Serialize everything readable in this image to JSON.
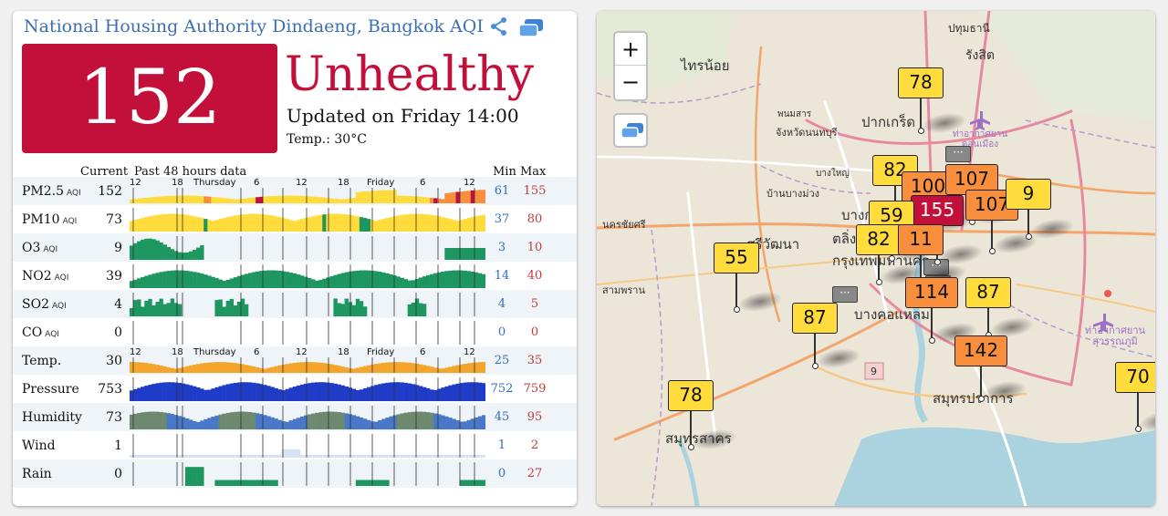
{
  "station": {
    "title": "National Housing Authority Dindaeng, Bangkok AQI",
    "aqi": "152",
    "status": "Unhealthy",
    "updated": "Updated on Friday 14:00",
    "temperature": "Temp.: 30°C",
    "colors": {
      "unhealthy": "#c3103b",
      "title": "#3a6fb5",
      "min": "#2f6fc1",
      "max": "#c23a3a"
    }
  },
  "table": {
    "header_current": "Current",
    "header_past": "Past 48 hours data",
    "header_min": "Min",
    "header_max": "Max",
    "ticks_top": [
      "12",
      "18",
      "Thursday",
      "6",
      "12",
      "18",
      "Friday",
      "6",
      "12"
    ],
    "rows": [
      {
        "name": "PM2.5",
        "unit": "AQI",
        "current": "152",
        "min": "61",
        "max": "155",
        "kind": "pm25"
      },
      {
        "name": "PM10",
        "unit": "AQI",
        "current": "73",
        "min": "37",
        "max": "80",
        "kind": "pm10"
      },
      {
        "name": "O3",
        "unit": "AQI",
        "current": "9",
        "min": "3",
        "max": "10",
        "kind": "o3"
      },
      {
        "name": "NO2",
        "unit": "AQI",
        "current": "39",
        "min": "14",
        "max": "40",
        "kind": "no2"
      },
      {
        "name": "SO2",
        "unit": "AQI",
        "current": "4",
        "min": "4",
        "max": "5",
        "kind": "so2"
      },
      {
        "name": "CO",
        "unit": "AQI",
        "current": "0",
        "min": "0",
        "max": "0",
        "kind": "co"
      },
      {
        "name": "Temp.",
        "unit": "",
        "current": "30",
        "min": "25",
        "max": "35",
        "kind": "temp"
      },
      {
        "name": "Pressure",
        "unit": "",
        "current": "753",
        "min": "752",
        "max": "759",
        "kind": "pressure"
      },
      {
        "name": "Humidity",
        "unit": "",
        "current": "73",
        "min": "45",
        "max": "95",
        "kind": "humidity"
      },
      {
        "name": "Wind",
        "unit": "",
        "current": "1",
        "min": "1",
        "max": "2",
        "kind": "wind"
      },
      {
        "name": "Rain",
        "unit": "",
        "current": "0",
        "min": "0",
        "max": "27",
        "kind": "rain"
      }
    ]
  },
  "map": {
    "zoom_in": "+",
    "zoom_out": "−",
    "places": [
      {
        "name": "ปทุมธานี",
        "size": 12
      },
      {
        "name": "ไทรน้อย",
        "size": 15
      },
      {
        "name": "รังสิต",
        "size": 14
      },
      {
        "name": "ปากเกร็ด",
        "size": 15
      },
      {
        "name": "พนมสาร",
        "size": 10
      },
      {
        "name": "จังหวัดนนทบุรี",
        "size": 11
      },
      {
        "name": "ท่าอากาศยาน ดอนเมือง",
        "size": 10
      },
      {
        "name": "บางใหญ่",
        "size": 10
      },
      {
        "name": "บ้านบางม่วง",
        "size": 11
      },
      {
        "name": "นครชัยศรี",
        "size": 11
      },
      {
        "name": "ศรีวัฒนา",
        "size": 15
      },
      {
        "name": "บางกรวย",
        "size": 15
      },
      {
        "name": "ตลิ่งชัน",
        "size": 15
      },
      {
        "name": "กรุงเทพมหานคร",
        "size": 15
      },
      {
        "name": "สามพราน",
        "size": 11
      },
      {
        "name": "บางคอแหลม",
        "size": 15
      },
      {
        "name": "ท่าอากาศยาน สุวรรณภูมิ",
        "size": 11
      },
      {
        "name": "สมุทรปราการ",
        "size": 15
      },
      {
        "name": "สมุทรสาคร",
        "size": 15
      },
      {
        "name": "9",
        "size": 11
      }
    ],
    "markers": [
      {
        "value": "78",
        "color": "#ffdc3c"
      },
      {
        "value": "82",
        "color": "#ffdc3c"
      },
      {
        "value": "100",
        "color": "#f98f3c"
      },
      {
        "value": "107",
        "color": "#f98f3c"
      },
      {
        "value": "107",
        "color": "#f98f3c"
      },
      {
        "value": "9",
        "color": "#ffdc3c"
      },
      {
        "value": "155",
        "color": "#c3103b"
      },
      {
        "value": "59",
        "color": "#ffdc3c"
      },
      {
        "value": "82",
        "color": "#ffdc3c"
      },
      {
        "value": "11",
        "color": "#f98f3c"
      },
      {
        "value": "55",
        "color": "#ffdc3c"
      },
      {
        "value": "114",
        "color": "#f98f3c"
      },
      {
        "value": "87",
        "color": "#ffdc3c"
      },
      {
        "value": "87",
        "color": "#ffdc3c"
      },
      {
        "value": "142",
        "color": "#f98f3c"
      },
      {
        "value": "78",
        "color": "#ffdc3c"
      },
      {
        "value": "70",
        "color": "#ffdc3c"
      }
    ],
    "mini_label": "···"
  }
}
